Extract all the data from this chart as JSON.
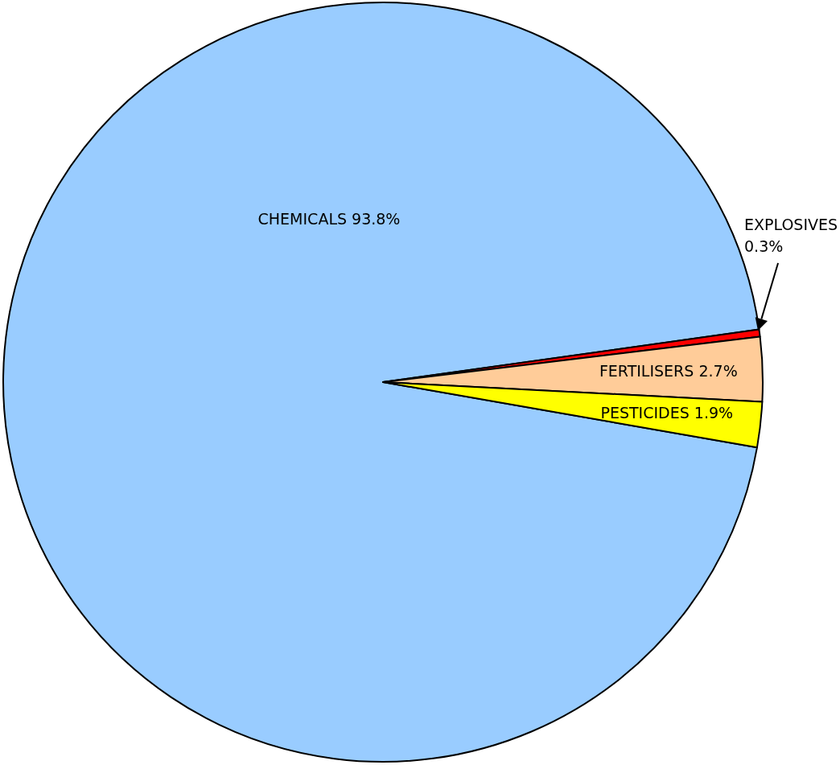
{
  "chart_data": {
    "type": "pie",
    "categories": [
      "CHEMICALS",
      "EXPLOSIVES",
      "FERTILISERS",
      "PESTICIDES"
    ],
    "values": [
      93.8,
      0.3,
      2.7,
      1.9
    ],
    "colors": [
      "#99ccff",
      "#ff0000",
      "#ffcc99",
      "#ffff00"
    ],
    "value_labels": [
      "93.8%",
      "0.3%",
      "2.7%",
      "1.9%"
    ]
  }
}
